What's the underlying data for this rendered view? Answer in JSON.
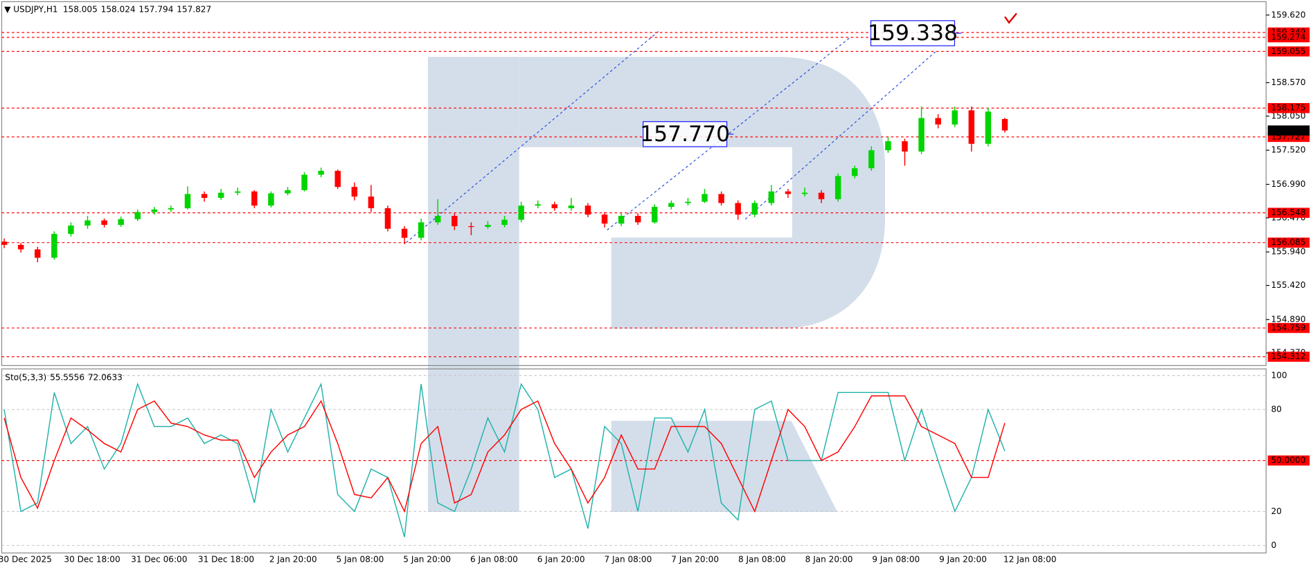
{
  "chart_data": [
    {
      "type": "candlestick",
      "title": "USDJPY,H1",
      "up_color": "#00d400",
      "down_color": "#ff0000",
      "ohlc": [
        [
          156.1,
          156.15,
          156.0,
          156.05
        ],
        [
          156.05,
          156.08,
          155.93,
          155.98
        ],
        [
          155.98,
          156.02,
          155.78,
          155.85
        ],
        [
          155.85,
          156.26,
          155.82,
          156.22
        ],
        [
          156.22,
          156.4,
          156.18,
          156.35
        ],
        [
          156.35,
          156.5,
          156.3,
          156.43
        ],
        [
          156.43,
          156.46,
          156.32,
          156.36
        ],
        [
          156.36,
          156.49,
          156.33,
          156.45
        ],
        [
          156.45,
          156.6,
          156.42,
          156.56
        ],
        [
          156.56,
          156.64,
          156.52,
          156.6
        ],
        [
          156.6,
          156.66,
          156.56,
          156.62
        ],
        [
          156.62,
          156.96,
          156.6,
          156.84
        ],
        [
          156.84,
          156.88,
          156.72,
          156.78
        ],
        [
          156.78,
          156.92,
          156.75,
          156.86
        ],
        [
          156.86,
          156.94,
          156.82,
          156.88
        ],
        [
          156.88,
          156.9,
          156.62,
          156.66
        ],
        [
          156.66,
          156.88,
          156.63,
          156.85
        ],
        [
          156.85,
          156.95,
          156.82,
          156.9
        ],
        [
          156.9,
          157.18,
          156.88,
          157.14
        ],
        [
          157.14,
          157.25,
          157.1,
          157.2
        ],
        [
          157.2,
          157.22,
          156.92,
          156.95
        ],
        [
          156.95,
          157.02,
          156.74,
          156.8
        ],
        [
          156.8,
          156.98,
          156.56,
          156.62
        ],
        [
          156.62,
          156.66,
          156.26,
          156.3
        ],
        [
          156.3,
          156.34,
          156.06,
          156.16
        ],
        [
          156.16,
          156.46,
          156.12,
          156.4
        ],
        [
          156.4,
          156.76,
          156.36,
          156.5
        ],
        [
          156.5,
          156.54,
          156.28,
          156.34
        ],
        [
          156.34,
          156.4,
          156.2,
          156.33
        ],
        [
          156.33,
          156.42,
          156.3,
          156.36
        ],
        [
          156.36,
          156.5,
          156.32,
          156.44
        ],
        [
          156.44,
          156.72,
          156.4,
          156.66
        ],
        [
          156.66,
          156.74,
          156.62,
          156.68
        ],
        [
          156.68,
          156.72,
          156.58,
          156.62
        ],
        [
          156.62,
          156.78,
          156.58,
          156.66
        ],
        [
          156.66,
          156.7,
          156.48,
          156.52
        ],
        [
          156.52,
          156.56,
          156.32,
          156.38
        ],
        [
          156.38,
          156.54,
          156.34,
          156.5
        ],
        [
          156.5,
          156.54,
          156.36,
          156.4
        ],
        [
          156.4,
          156.68,
          156.38,
          156.64
        ],
        [
          156.64,
          156.74,
          156.6,
          156.7
        ],
        [
          156.7,
          156.78,
          156.66,
          156.72
        ],
        [
          156.72,
          156.92,
          156.7,
          156.84
        ],
        [
          156.84,
          156.88,
          156.66,
          156.7
        ],
        [
          156.7,
          156.74,
          156.44,
          156.52
        ],
        [
          156.52,
          156.74,
          156.48,
          156.7
        ],
        [
          156.7,
          156.98,
          156.66,
          156.88
        ],
        [
          156.88,
          156.92,
          156.78,
          156.84
        ],
        [
          156.84,
          156.94,
          156.8,
          156.86
        ],
        [
          156.86,
          156.9,
          156.7,
          156.76
        ],
        [
          156.76,
          157.16,
          156.72,
          157.12
        ],
        [
          157.12,
          157.28,
          157.08,
          157.24
        ],
        [
          157.24,
          157.58,
          157.2,
          157.52
        ],
        [
          157.52,
          157.72,
          157.48,
          157.66
        ],
        [
          157.66,
          157.7,
          157.28,
          157.5
        ],
        [
          157.5,
          158.2,
          157.46,
          158.02
        ],
        [
          158.02,
          158.08,
          157.86,
          157.92
        ],
        [
          157.92,
          158.2,
          157.88,
          158.14
        ],
        [
          158.14,
          158.2,
          157.5,
          157.62
        ],
        [
          157.62,
          158.18,
          157.58,
          158.12
        ],
        [
          158.005,
          158.024,
          157.794,
          157.827
        ]
      ],
      "ylim": [
        154.175,
        159.789
      ],
      "yticks": [
        {
          "value": 159.62,
          "label": "159.620"
        },
        {
          "value": 158.57,
          "label": "158.570"
        },
        {
          "value": 158.05,
          "label": "158.050"
        },
        {
          "value": 157.52,
          "label": "157.520"
        },
        {
          "value": 156.99,
          "label": "156.990"
        },
        {
          "value": 156.47,
          "label": "156.470"
        },
        {
          "value": 155.94,
          "label": "155.940"
        },
        {
          "value": 155.42,
          "label": "155.420"
        },
        {
          "value": 154.89,
          "label": "154.890"
        },
        {
          "value": 154.37,
          "label": "154.370"
        }
      ],
      "levels": [
        159.349,
        159.274,
        159.055,
        158.175,
        157.727,
        156.548,
        156.085,
        154.759,
        154.312
      ],
      "level_color": "#ff0000",
      "annotations": [
        159.338,
        {
          "value": 157.77,
          "label": "157.770"
        }
      ],
      "annotation_color": "#1a1aff"
    },
    {
      "type": "line",
      "title": "Sto(5,3,3)",
      "series": [
        {
          "color": "#20b2aa",
          "values": [
            80,
            20,
            25,
            90,
            60,
            70,
            45,
            60,
            95,
            70,
            70,
            75,
            60,
            65,
            60,
            25,
            80,
            55,
            75,
            95,
            30,
            20,
            45,
            40,
            5,
            95,
            25,
            20,
            45,
            75,
            55,
            95,
            80,
            40,
            45,
            10,
            70,
            60,
            20,
            75,
            75,
            55,
            80,
            25,
            15,
            80,
            85,
            50,
            50,
            50,
            90,
            90,
            90,
            90,
            50,
            80,
            50,
            20,
            40,
            80,
            55.5556
          ]
        },
        {
          "color": "#ff0000",
          "values": [
            75,
            40,
            22,
            50,
            75,
            68,
            60,
            55,
            80,
            85,
            72,
            70,
            65,
            62,
            62,
            40,
            55,
            65,
            70,
            85,
            60,
            30,
            28,
            40,
            20,
            60,
            70,
            25,
            30,
            55,
            65,
            80,
            85,
            60,
            45,
            25,
            40,
            65,
            45,
            45,
            70,
            70,
            70,
            60,
            40,
            20,
            50,
            80,
            70,
            50,
            55,
            70,
            88,
            88,
            88,
            70,
            65,
            60,
            40,
            40,
            72.0633
          ]
        }
      ],
      "ylim": [
        -3.9,
        103.4
      ],
      "yticks": [
        0,
        20,
        {
          "value": 50,
          "label": "50.0000"
        },
        80,
        100
      ],
      "grid": true,
      "x_labels": [
        "30 Dec 2025",
        "30 Dec 18:00",
        "31 Dec 06:00",
        "31 Dec 18:00",
        "2 Jan 20:00",
        "5 Jan 08:00",
        "5 Jan 20:00",
        "6 Jan 08:00",
        "6 Jan 20:00",
        "7 Jan 08:00",
        "7 Jan 20:00",
        "8 Jan 08:00",
        "8 Jan 20:00",
        "9 Jan 08:00",
        "9 Jan 20:00",
        "12 Jan 08:00"
      ]
    }
  ]
}
